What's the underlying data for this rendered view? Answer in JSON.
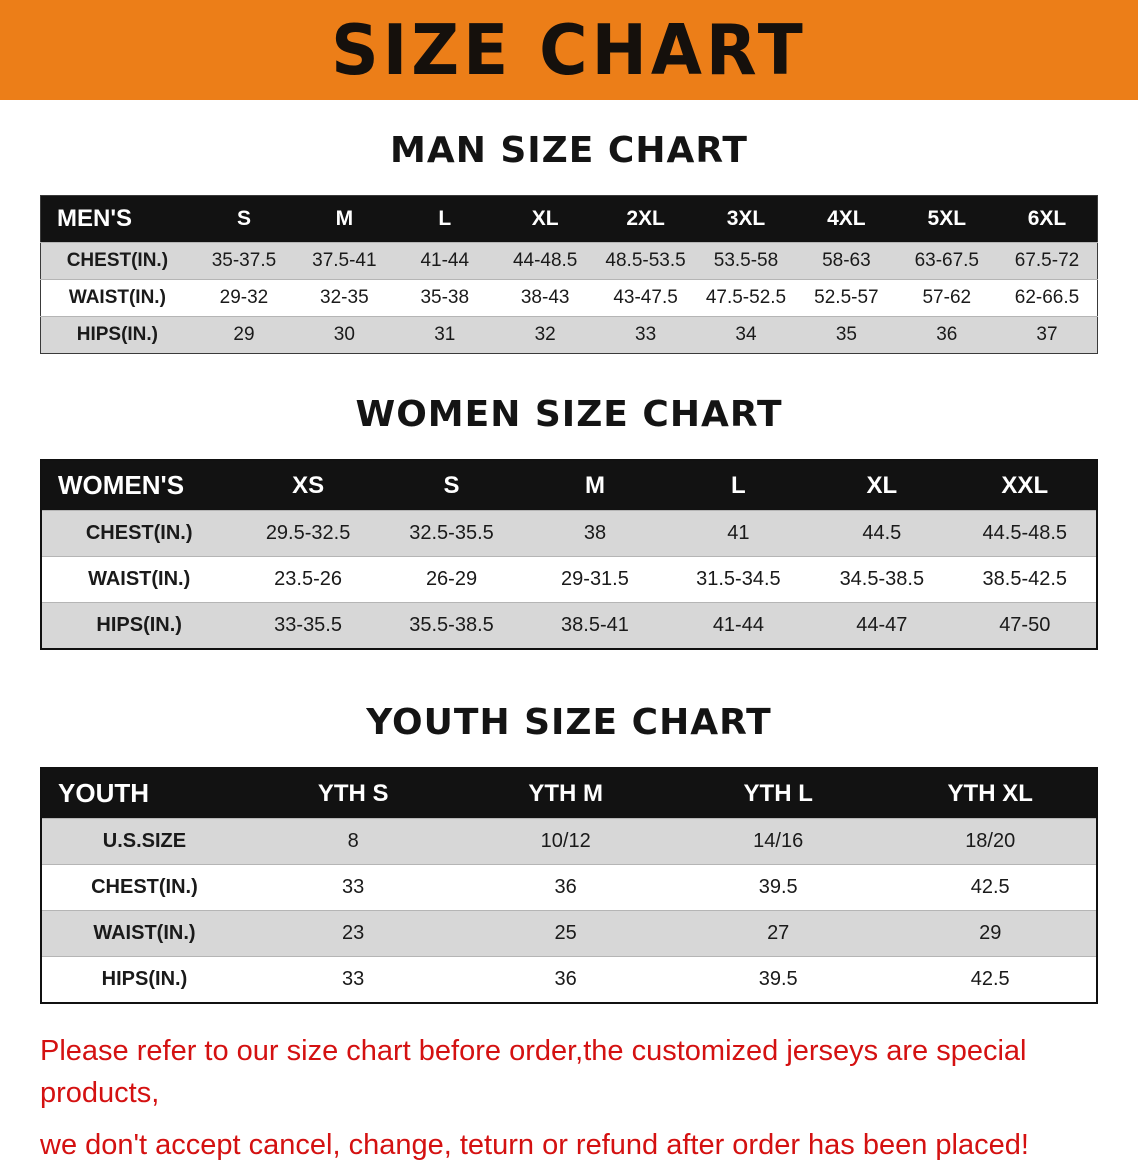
{
  "banner": {
    "title": "SIZE CHART"
  },
  "colors": {
    "banner_bg": "#ec7e18",
    "table_header_bg": "#121212",
    "row_alt_gray": "#d7d7d7",
    "note_red": "#d41111"
  },
  "sections": [
    {
      "id": "men",
      "heading": "MAN SIZE CHART",
      "table": {
        "header": [
          "MEN'S",
          "S",
          "M",
          "L",
          "XL",
          "2XL",
          "3XL",
          "4XL",
          "5XL",
          "6XL"
        ],
        "rows": [
          {
            "label": "CHEST(IN.)",
            "values": [
              "35-37.5",
              "37.5-41",
              "41-44",
              "44-48.5",
              "48.5-53.5",
              "53.5-58",
              "58-63",
              "63-67.5",
              "67.5-72"
            ]
          },
          {
            "label": "WAIST(IN.)",
            "values": [
              "29-32",
              "32-35",
              "35-38",
              "38-43",
              "43-47.5",
              "47.5-52.5",
              "52.5-57",
              "57-62",
              "62-66.5"
            ]
          },
          {
            "label": "HIPS(IN.)",
            "values": [
              "29",
              "30",
              "31",
              "32",
              "33",
              "34",
              "35",
              "36",
              "37"
            ]
          }
        ]
      }
    },
    {
      "id": "women",
      "heading": "WOMEN SIZE CHART",
      "table": {
        "header": [
          "WOMEN'S",
          "XS",
          "S",
          "M",
          "L",
          "XL",
          "XXL"
        ],
        "rows": [
          {
            "label": "CHEST(IN.)",
            "values": [
              "29.5-32.5",
              "32.5-35.5",
              "38",
              "41",
              "44.5",
              "44.5-48.5"
            ]
          },
          {
            "label": "WAIST(IN.)",
            "values": [
              "23.5-26",
              "26-29",
              "29-31.5",
              "31.5-34.5",
              "34.5-38.5",
              "38.5-42.5"
            ]
          },
          {
            "label": "HIPS(IN.)",
            "values": [
              "33-35.5",
              "35.5-38.5",
              "38.5-41",
              "41-44",
              "44-47",
              "47-50"
            ]
          }
        ]
      }
    },
    {
      "id": "youth",
      "heading": "YOUTH SIZE CHART",
      "table": {
        "header": [
          "YOUTH",
          "YTH S",
          "YTH M",
          "YTH L",
          "YTH XL"
        ],
        "rows": [
          {
            "label": "U.S.SIZE",
            "values": [
              "8",
              "10/12",
              "14/16",
              "18/20"
            ]
          },
          {
            "label": "CHEST(IN.)",
            "values": [
              "33",
              "36",
              "39.5",
              "42.5"
            ]
          },
          {
            "label": "WAIST(IN.)",
            "values": [
              "23",
              "25",
              "27",
              "29"
            ]
          },
          {
            "label": "HIPS(IN.)",
            "values": [
              "33",
              "36",
              "39.5",
              "42.5"
            ]
          }
        ]
      }
    }
  ],
  "footer": {
    "lines": [
      "Please refer to our size chart before order,the customized jerseys are special products,",
      "we don't accept cancel, change, teturn or refund after order has been placed!"
    ]
  }
}
